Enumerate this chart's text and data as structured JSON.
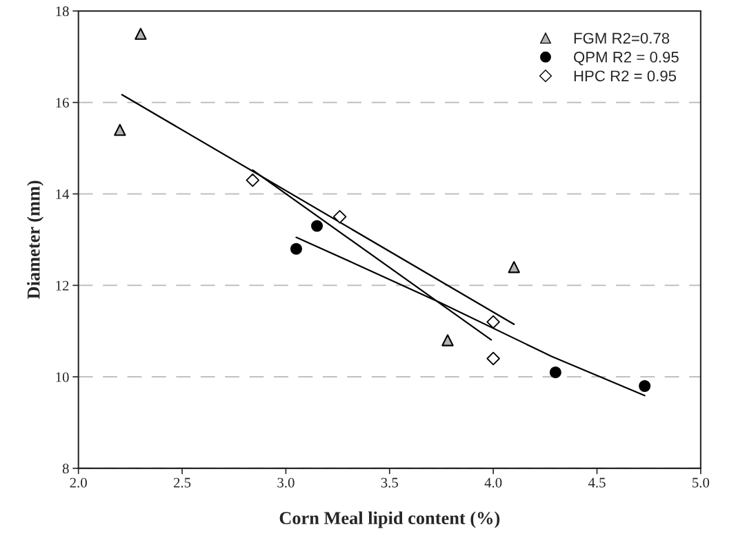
{
  "chart_data": {
    "type": "scatter",
    "xlabel": "Corn Meal lipid content (%)",
    "ylabel": "Diameter (mm)",
    "xlim": [
      2.0,
      5.0
    ],
    "xticks": [
      {
        "value": 2.0,
        "label": "2.0"
      },
      {
        "value": 2.5,
        "label": "2.5"
      },
      {
        "value": 3.0,
        "label": "3.0"
      },
      {
        "value": 3.5,
        "label": "3.5"
      },
      {
        "value": 4.0,
        "label": "4.0"
      },
      {
        "value": 4.5,
        "label": "4.5"
      },
      {
        "value": 5.0,
        "label": "5.0"
      }
    ],
    "ylim": [
      8,
      18
    ],
    "yticks": [
      8,
      10,
      12,
      14,
      16,
      18
    ],
    "grid": "y",
    "legend": "top right",
    "series": [
      {
        "name": "FGM R2=0.78",
        "color": "#b4b4b4",
        "marker": "triangle",
        "x": [
          2.3,
          2.2,
          3.78,
          4.1
        ],
        "values": [
          17.5,
          15.4,
          10.8,
          12.4
        ]
      },
      {
        "name": "QPM R2 = 0.95",
        "color": "#000000",
        "marker": "circle",
        "x": [
          3.05,
          3.15,
          4.3,
          4.73
        ],
        "values": [
          12.8,
          13.3,
          10.1,
          9.8
        ]
      },
      {
        "name": "HPC R2 = 0.95",
        "color": "#ffffff",
        "marker": "diamond",
        "x": [
          2.84,
          3.26,
          4.0,
          4.0
        ],
        "values": [
          14.3,
          13.5,
          11.2,
          10.4
        ]
      },
      {
        "type": "line",
        "color": "#000000",
        "x": [
          2.21,
          4.1
        ],
        "values": [
          16.17,
          11.15
        ]
      },
      {
        "type": "line",
        "color": "#000000",
        "x": [
          2.84,
          3.99
        ],
        "values": [
          14.52,
          10.81
        ]
      },
      {
        "type": "line",
        "color": "#000000",
        "x": [
          3.05,
          3.33,
          3.74,
          4.28,
          4.73
        ],
        "values": [
          13.05,
          12.48,
          11.63,
          10.45,
          9.59
        ]
      }
    ]
  }
}
